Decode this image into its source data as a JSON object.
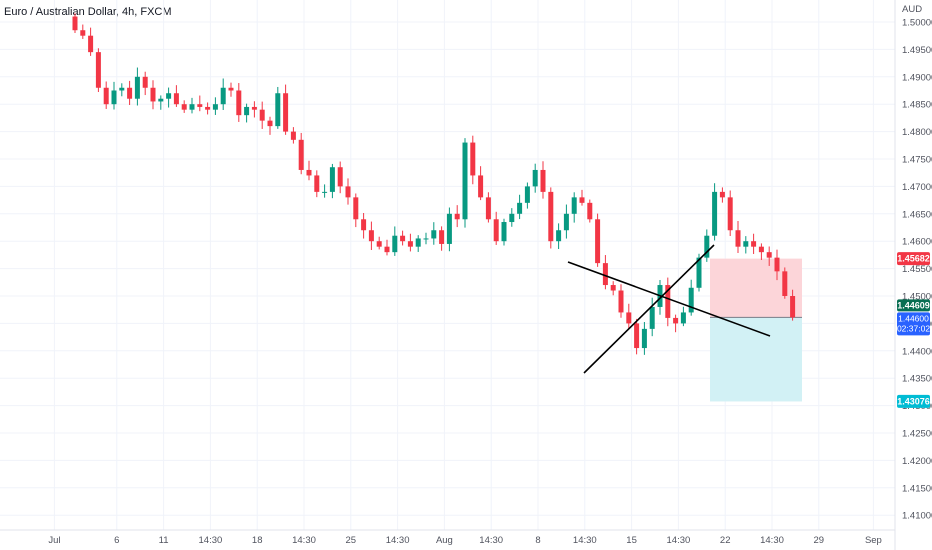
{
  "chart_data": {
    "type": "candlestick",
    "title": "Euro / Australian Dollar, 4h, FXCM",
    "y_unit": "AUD",
    "ylim": [
      1.405,
      1.502
    ],
    "y_ticks": [
      1.5,
      1.495,
      1.49,
      1.485,
      1.48,
      1.475,
      1.47,
      1.465,
      1.46,
      1.455,
      1.45,
      1.445,
      1.44,
      1.435,
      1.43,
      1.425,
      1.42,
      1.415,
      1.41
    ],
    "y_tick_labels": [
      "1.50000",
      "1.49500",
      "1.49000",
      "1.48500",
      "1.48000",
      "1.47500",
      "1.47000",
      "1.46500",
      "1.46000",
      "1.45500",
      "1.45000",
      "1.44500",
      "1.44000",
      "1.43500",
      "1.43000",
      "1.42500",
      "1.42000",
      "1.41500",
      "1.41000"
    ],
    "x_ticks": [
      {
        "i": -2,
        "label": "Jul"
      },
      {
        "i": 6,
        "label": "6"
      },
      {
        "i": 12,
        "label": "11"
      },
      {
        "i": 18,
        "label": "14:30"
      },
      {
        "i": 24,
        "label": "18"
      },
      {
        "i": 30,
        "label": "14:30"
      },
      {
        "i": 36,
        "label": "25"
      },
      {
        "i": 42,
        "label": "14:30"
      },
      {
        "i": 48,
        "label": "Aug"
      },
      {
        "i": 54,
        "label": "14:30"
      },
      {
        "i": 60,
        "label": "8"
      },
      {
        "i": 66,
        "label": "14:30"
      },
      {
        "i": 72,
        "label": "15"
      },
      {
        "i": 78,
        "label": "14:30"
      },
      {
        "i": 84,
        "label": "22"
      },
      {
        "i": 90,
        "label": "14:30"
      },
      {
        "i": 96,
        "label": "29"
      },
      {
        "i": 103,
        "label": "Sep"
      }
    ],
    "closes": [
      1.4985,
      1.4975,
      1.4945,
      1.488,
      1.485,
      1.4875,
      1.488,
      1.486,
      1.49,
      1.488,
      1.4855,
      1.486,
      1.487,
      1.485,
      1.484,
      1.485,
      1.4845,
      1.484,
      1.485,
      1.488,
      1.4875,
      1.483,
      1.4845,
      1.484,
      1.482,
      1.481,
      1.487,
      1.48,
      1.4785,
      1.473,
      1.472,
      1.469,
      1.469,
      1.4735,
      1.47,
      1.468,
      1.464,
      1.462,
      1.46,
      1.459,
      1.458,
      1.461,
      1.46,
      1.459,
      1.4605,
      1.4605,
      1.462,
      1.4595,
      1.465,
      1.464,
      1.478,
      1.472,
      1.468,
      1.464,
      1.46,
      1.4635,
      1.465,
      1.467,
      1.47,
      1.473,
      1.469,
      1.46,
      1.462,
      1.465,
      1.468,
      1.467,
      1.464,
      1.456,
      1.452,
      1.451,
      1.447,
      1.445,
      1.4405,
      1.444,
      1.448,
      1.452,
      1.446,
      1.445,
      1.447,
      1.4515,
      1.457,
      1.461,
      1.469,
      1.468,
      1.462,
      1.459,
      1.46,
      1.459,
      1.458,
      1.457,
      1.4545,
      1.45,
      1.4461
    ],
    "current_price": "1.44609",
    "current_sub": "1.44600",
    "countdown": "02:37:02",
    "stop_price": "1.45682",
    "target_price": "1.43076",
    "colors": {
      "up": "#089981",
      "down": "#f23645",
      "stop_zone": "#fcd5d9",
      "target_zone": "#d2f1f5",
      "stop_tag": "#f23645",
      "price_tag": "#086e52",
      "current_tag": "#2962ff",
      "target_tag": "#00bcd4",
      "grid": "#f0f3fa",
      "trendline": "#000000"
    }
  }
}
